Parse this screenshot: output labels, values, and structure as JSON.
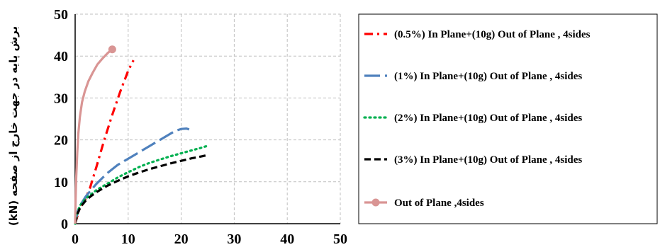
{
  "chart_data": {
    "type": "line",
    "ylabel": "برش پایه در جهت خارج از صفحه (kN)",
    "xlabel": "",
    "xlim": [
      0,
      50
    ],
    "ylim": [
      0,
      50
    ],
    "x_ticks": [
      "0",
      "10",
      "20",
      "30",
      "40",
      "50"
    ],
    "y_ticks": [
      "0",
      "10",
      "20",
      "30",
      "40",
      "50"
    ],
    "grid": "dashed",
    "legend_placement": "right",
    "series": [
      {
        "name": "(0.5%) In Plane+(10g) Out of Plane , 4sides",
        "color": "#ff0000",
        "style": "dash-dot",
        "x": [
          0,
          0.8,
          1.8,
          2.8,
          4.0,
          5.5,
          7.0,
          8.5,
          10.0,
          11.0
        ],
        "y": [
          0,
          3.5,
          5.5,
          8.5,
          13.5,
          20.0,
          26.0,
          31.5,
          36.5,
          39.0
        ]
      },
      {
        "name": "(1%) In Plane+(10g) Out of Plane , 4sides",
        "color": "#4f81bd",
        "style": "long-dash",
        "x": [
          0,
          0.5,
          1.0,
          2.0,
          3.0,
          4.0,
          6.0,
          8.0,
          10.0,
          12.0,
          14.0,
          16.0,
          18.0,
          19.0,
          20.0,
          21.0,
          21.5
        ],
        "y": [
          0,
          3.0,
          4.5,
          6.5,
          8.0,
          9.5,
          12.0,
          14.0,
          15.5,
          17.0,
          18.5,
          20.0,
          21.5,
          22.2,
          22.6,
          22.7,
          22.5
        ]
      },
      {
        "name": "(2%) In Plane+(10g) Out of Plane , 4sides",
        "color": "#00b050",
        "style": "dotted",
        "x": [
          0,
          0.5,
          1.0,
          2.0,
          3.0,
          4.0,
          6.0,
          8.0,
          10.0,
          12.0,
          14.0,
          16.0,
          18.0,
          20.0,
          22.0,
          24.0,
          25.0
        ],
        "y": [
          0,
          3.0,
          4.5,
          6.0,
          7.0,
          8.0,
          9.5,
          11.0,
          12.3,
          13.5,
          14.5,
          15.3,
          16.1,
          16.8,
          17.5,
          18.2,
          18.6
        ]
      },
      {
        "name": "(3%) In Plane+(10g) Out of Plane , 4sides",
        "color": "#000000",
        "style": "dashed",
        "x": [
          0,
          0.5,
          1.0,
          2.0,
          3.0,
          4.0,
          6.0,
          8.0,
          10.0,
          12.0,
          14.0,
          16.0,
          18.0,
          20.0,
          22.0,
          24.0,
          25.0
        ],
        "y": [
          0,
          2.5,
          4.0,
          5.5,
          6.6,
          7.5,
          9.0,
          10.2,
          11.3,
          12.2,
          13.0,
          13.7,
          14.4,
          15.0,
          15.6,
          16.1,
          16.4
        ]
      },
      {
        "name": "Out of Plane ,4sides",
        "color": "#d99594",
        "style": "solid",
        "marker_at_end": true,
        "x": [
          0,
          0.1,
          0.2,
          0.4,
          0.6,
          0.9,
          1.3,
          1.8,
          2.5,
          3.3,
          4.2,
          5.2,
          6.2,
          7.0
        ],
        "y": [
          0,
          6.0,
          11.0,
          17.0,
          21.5,
          25.5,
          29.0,
          31.5,
          34.0,
          36.0,
          38.0,
          39.5,
          40.8,
          41.6
        ]
      }
    ]
  }
}
